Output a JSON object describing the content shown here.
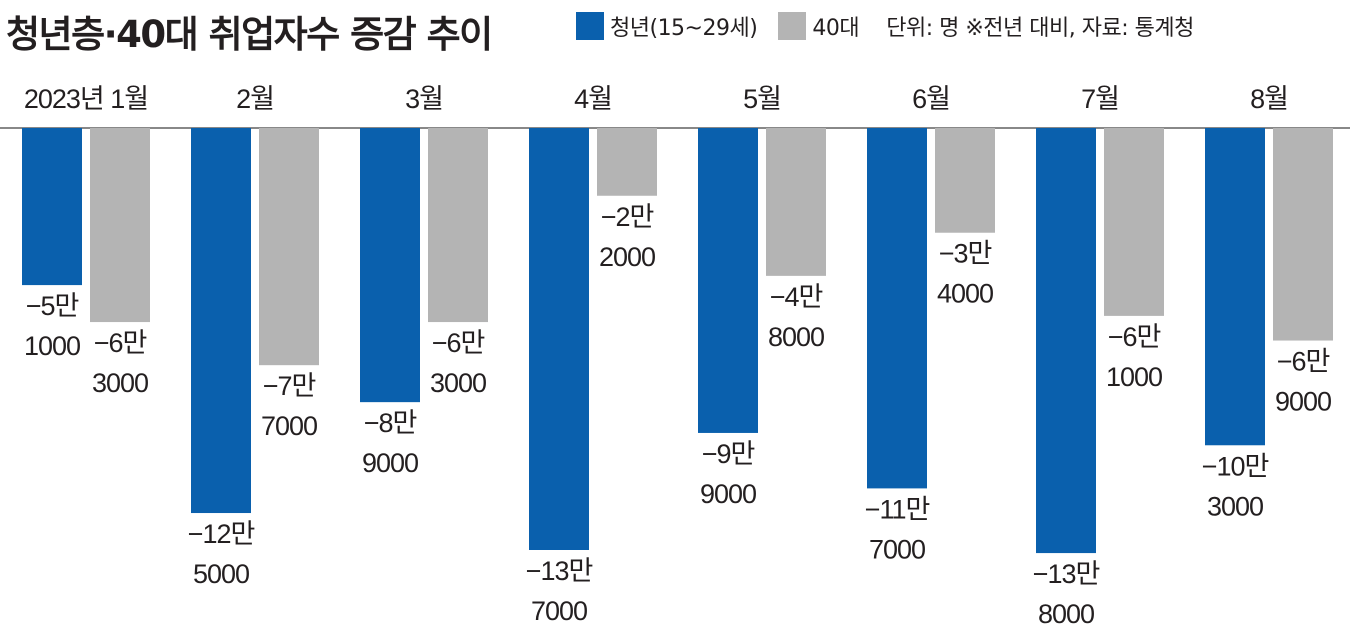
{
  "title": "청년층·40대 취업자수 증감 추이",
  "note": "단위: 명 ※전년 대비, 자료: 통계청",
  "colors": {
    "youth": "#0a60ad",
    "forties": "#b4b4b4",
    "axis": "#888888",
    "text": "#231f20"
  },
  "chart_data": {
    "type": "bar",
    "orientation": "vertical",
    "baseline": "top",
    "categories": [
      "2023년 1월",
      "2월",
      "3월",
      "4월",
      "5월",
      "6월",
      "7월",
      "8월"
    ],
    "series": [
      {
        "name": "청년(15~29세)",
        "color": "#0a60ad",
        "values": [
          -51000,
          -125000,
          -89000,
          -137000,
          -99000,
          -117000,
          -138000,
          -103000
        ],
        "labels": [
          [
            "−5만",
            "1000"
          ],
          [
            "−12만",
            "5000"
          ],
          [
            "−8만",
            "9000"
          ],
          [
            "−13만",
            "7000"
          ],
          [
            "−9만",
            "9000"
          ],
          [
            "−11만",
            "7000"
          ],
          [
            "−13만",
            "8000"
          ],
          [
            "−10만",
            "3000"
          ]
        ]
      },
      {
        "name": "40대",
        "color": "#b4b4b4",
        "values": [
          -63000,
          -77000,
          -63000,
          -22000,
          -48000,
          -34000,
          -61000,
          -69000
        ],
        "labels": [
          [
            "−6만",
            "3000"
          ],
          [
            "−7만",
            "7000"
          ],
          [
            "−6만",
            "3000"
          ],
          [
            "−2만",
            "2000"
          ],
          [
            "−4만",
            "8000"
          ],
          [
            "−3만",
            "4000"
          ],
          [
            "−6만",
            "1000"
          ],
          [
            "−6만",
            "9000"
          ]
        ]
      }
    ],
    "ylim": [
      -140000,
      0
    ],
    "grid": false,
    "legend_position": "top"
  }
}
